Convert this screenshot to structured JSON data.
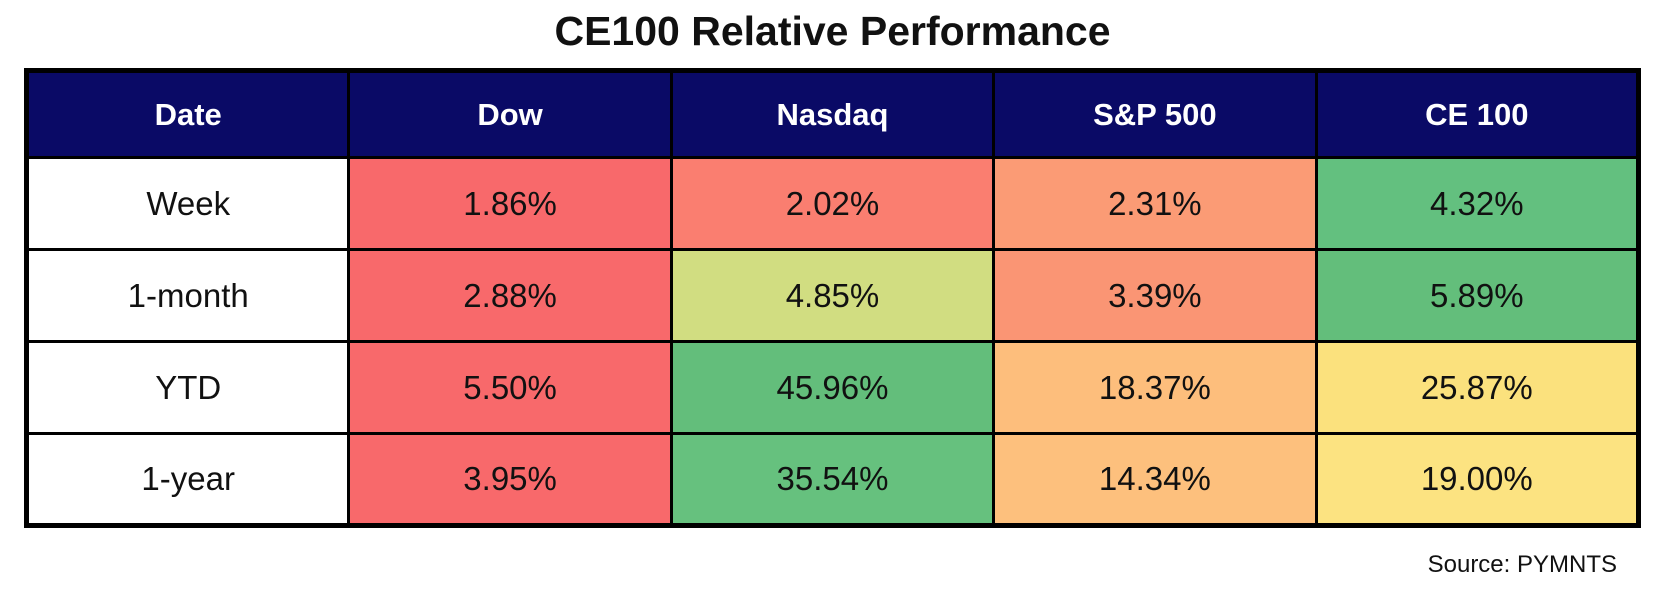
{
  "title": "CE100 Relative Performance",
  "source": "Source: PYMNTS",
  "colors": {
    "header_bg": "#0A0A66",
    "header_text": "#FFFFFF",
    "row_label_bg": "#FFFFFF",
    "border": "#000000"
  },
  "chart_data": {
    "type": "table",
    "title": "CE100 Relative Performance",
    "columns": [
      "Date",
      "Dow",
      "Nasdaq",
      "S&P 500",
      "CE 100"
    ],
    "rows": [
      {
        "label": "Week",
        "cells": [
          {
            "value": "1.86%",
            "bg": "#F8696B"
          },
          {
            "value": "2.02%",
            "bg": "#FA7E70"
          },
          {
            "value": "2.31%",
            "bg": "#FB9B75"
          },
          {
            "value": "4.32%",
            "bg": "#63C07F"
          }
        ]
      },
      {
        "label": "1-month",
        "cells": [
          {
            "value": "2.88%",
            "bg": "#F8696B"
          },
          {
            "value": "4.85%",
            "bg": "#D1DD81"
          },
          {
            "value": "3.39%",
            "bg": "#FA9574"
          },
          {
            "value": "5.89%",
            "bg": "#63BE7B"
          }
        ]
      },
      {
        "label": "YTD",
        "cells": [
          {
            "value": "5.50%",
            "bg": "#F8696B"
          },
          {
            "value": "45.96%",
            "bg": "#63BE7B"
          },
          {
            "value": "18.37%",
            "bg": "#FDBE7C"
          },
          {
            "value": "25.87%",
            "bg": "#FBE17D"
          }
        ]
      },
      {
        "label": "1-year",
        "cells": [
          {
            "value": "3.95%",
            "bg": "#F8696B"
          },
          {
            "value": "35.54%",
            "bg": "#66C17E"
          },
          {
            "value": "14.34%",
            "bg": "#FDC07D"
          },
          {
            "value": "19.00%",
            "bg": "#FCE381"
          }
        ]
      }
    ]
  }
}
